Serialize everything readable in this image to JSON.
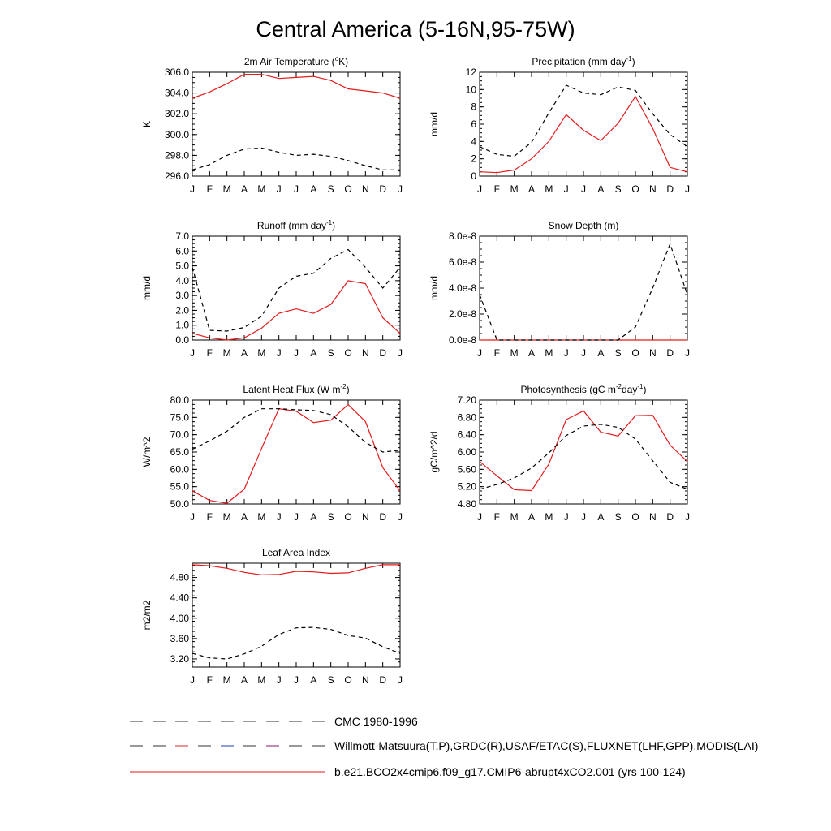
{
  "page_title": "Central America (5-16N,95-75W)",
  "legend": [
    {
      "label": "CMC 1980-1996",
      "style": "dashed",
      "color": "#333333"
    },
    {
      "label": "Willmott-Matsuura(T,P),GRDC(R),USAF/ETAC(S),FLUXNET(LHF,GPP),MODIS(LAI)",
      "style": "dashed-multicolor",
      "color": "#333333"
    },
    {
      "label": "b.e21.BCO2x4cmip6.f09_g17.CMIP6-abrupt4xCO2.001 (yrs 100-124)",
      "style": "solid",
      "color": "#e41a1c"
    }
  ],
  "chart_data": [
    {
      "type": "line",
      "title": "2m Air Temperature (",
      "title_sup": "o",
      "title_tail": "K)",
      "ylabel": "K",
      "categories": [
        "J",
        "F",
        "M",
        "A",
        "M",
        "J",
        "J",
        "A",
        "S",
        "O",
        "N",
        "D",
        "J"
      ],
      "ylim": [
        296.0,
        306.0
      ],
      "yticks": [
        296.0,
        298.0,
        300.0,
        302.0,
        304.0,
        306.0
      ],
      "ytick_labels": [
        "296.0",
        "298.0",
        "300.0",
        "302.0",
        "304.0",
        "306.0"
      ],
      "series": [
        {
          "style": "solid",
          "color": "#e41a1c",
          "values": [
            303.5,
            304.1,
            304.9,
            305.8,
            305.8,
            305.4,
            305.5,
            305.6,
            305.2,
            304.4,
            304.2,
            304.0,
            303.5
          ]
        },
        {
          "style": "dashed",
          "color": "#000000",
          "values": [
            296.6,
            297.1,
            298.0,
            298.6,
            298.7,
            298.3,
            298.0,
            298.1,
            297.9,
            297.5,
            297.0,
            296.6,
            296.6
          ]
        }
      ]
    },
    {
      "type": "line",
      "title": "Precipitation (mm day",
      "title_sup": "-1",
      "title_tail": ")",
      "ylabel": "mm/d",
      "categories": [
        "J",
        "F",
        "M",
        "A",
        "M",
        "J",
        "J",
        "A",
        "S",
        "O",
        "N",
        "D",
        "J"
      ],
      "ylim": [
        0,
        12
      ],
      "yticks": [
        0,
        2,
        4,
        6,
        8,
        10,
        12
      ],
      "ytick_labels": [
        "0",
        "2",
        "4",
        "6",
        "8",
        "10",
        "12"
      ],
      "series": [
        {
          "style": "solid",
          "color": "#e41a1c",
          "values": [
            0.5,
            0.4,
            0.7,
            2.0,
            4.0,
            7.1,
            5.3,
            4.1,
            6.1,
            9.2,
            5.5,
            1.0,
            0.5
          ]
        },
        {
          "style": "dashed",
          "color": "#000000",
          "values": [
            3.4,
            2.5,
            2.3,
            3.9,
            7.3,
            10.5,
            9.6,
            9.4,
            10.3,
            9.9,
            7.2,
            4.8,
            3.4
          ]
        }
      ]
    },
    {
      "type": "line",
      "title": "Runoff (mm day",
      "title_sup": "-1",
      "title_tail": ")",
      "ylabel": "mm/d",
      "categories": [
        "J",
        "F",
        "M",
        "A",
        "M",
        "J",
        "J",
        "A",
        "S",
        "O",
        "N",
        "D",
        "J"
      ],
      "ylim": [
        0.0,
        7.0
      ],
      "yticks": [
        0.0,
        1.0,
        2.0,
        3.0,
        4.0,
        5.0,
        6.0,
        7.0
      ],
      "ytick_labels": [
        "0.0",
        "1.0",
        "2.0",
        "3.0",
        "4.0",
        "5.0",
        "6.0",
        "7.0"
      ],
      "series": [
        {
          "style": "solid",
          "color": "#e41a1c",
          "values": [
            0.45,
            0.15,
            0.0,
            0.15,
            0.8,
            1.8,
            2.1,
            1.8,
            2.4,
            4.0,
            3.8,
            1.5,
            0.45
          ]
        },
        {
          "style": "dashed",
          "color": "#000000",
          "values": [
            4.9,
            0.65,
            0.6,
            0.85,
            1.6,
            3.5,
            4.3,
            4.5,
            5.5,
            6.1,
            4.9,
            3.5,
            4.9
          ]
        }
      ]
    },
    {
      "type": "line",
      "title": "Snow Depth (m)",
      "title_sup": "",
      "title_tail": "",
      "ylabel": "mm/d",
      "categories": [
        "J",
        "F",
        "M",
        "A",
        "M",
        "J",
        "J",
        "A",
        "S",
        "O",
        "N",
        "D",
        "J"
      ],
      "ylim": [
        0.0,
        8e-08
      ],
      "yticks": [
        0.0,
        2e-08,
        4e-08,
        6e-08,
        8e-08
      ],
      "ytick_labels": [
        "0.0e-8",
        "2.0e-8",
        "4.0e-8",
        "6.0e-8",
        "8.0e-8"
      ],
      "series": [
        {
          "style": "solid",
          "color": "#e41a1c",
          "values": [
            0,
            0,
            0,
            0,
            0,
            0,
            0,
            0,
            0,
            0,
            0,
            0,
            0
          ]
        },
        {
          "style": "dashed",
          "color": "#000000",
          "values": [
            3.5e-08,
            0,
            0,
            0,
            0,
            0,
            0,
            0,
            0,
            1e-08,
            4e-08,
            7.4e-08,
            3.5e-08
          ]
        }
      ]
    },
    {
      "type": "line",
      "title": "Latent Heat Flux (W m",
      "title_sup": "-2",
      "title_tail": ")",
      "ylabel": "W/m^2",
      "categories": [
        "J",
        "F",
        "M",
        "A",
        "M",
        "J",
        "J",
        "A",
        "S",
        "O",
        "N",
        "D",
        "J"
      ],
      "ylim": [
        50.0,
        80.0
      ],
      "yticks": [
        50.0,
        55.0,
        60.0,
        65.0,
        70.0,
        75.0,
        80.0
      ],
      "ytick_labels": [
        "50.0",
        "55.0",
        "60.0",
        "65.0",
        "70.0",
        "75.0",
        "80.0"
      ],
      "series": [
        {
          "style": "solid",
          "color": "#e41a1c",
          "values": [
            53.8,
            51.0,
            50.2,
            54.3,
            66.0,
            77.5,
            76.8,
            73.5,
            74.2,
            78.7,
            73.8,
            60.5,
            53.8
          ]
        },
        {
          "style": "dashed",
          "color": "#000000",
          "values": [
            65.8,
            68.2,
            71.0,
            75.0,
            77.5,
            77.5,
            77.2,
            77.0,
            75.8,
            72.3,
            67.8,
            65.0,
            65.5
          ]
        }
      ]
    },
    {
      "type": "line",
      "title": "Photosynthesis (gC m",
      "title_sup": "-2",
      "title_tail": "day",
      "title_sup2": "-1",
      "title_tail2": ")",
      "ylabel": "gC/m^2/d",
      "categories": [
        "J",
        "F",
        "M",
        "A",
        "M",
        "J",
        "J",
        "A",
        "S",
        "O",
        "N",
        "D",
        "J"
      ],
      "ylim": [
        4.8,
        7.2
      ],
      "yticks": [
        4.8,
        5.2,
        5.6,
        6.0,
        6.4,
        6.8,
        7.2
      ],
      "ytick_labels": [
        "4.80",
        "5.20",
        "5.60",
        "6.00",
        "6.40",
        "6.80",
        "7.20"
      ],
      "series": [
        {
          "style": "solid",
          "color": "#e41a1c",
          "values": [
            5.78,
            5.45,
            5.13,
            5.11,
            5.72,
            6.75,
            6.95,
            6.46,
            6.37,
            6.84,
            6.85,
            6.16,
            5.78
          ]
        },
        {
          "style": "dashed",
          "color": "#000000",
          "values": [
            5.14,
            5.25,
            5.4,
            5.63,
            5.98,
            6.38,
            6.6,
            6.64,
            6.57,
            6.3,
            5.8,
            5.3,
            5.14
          ]
        }
      ]
    },
    {
      "type": "line",
      "title": "Leaf Area Index",
      "title_sup": "",
      "title_tail": "",
      "ylabel": "m2/m2",
      "categories": [
        "J",
        "F",
        "M",
        "A",
        "M",
        "J",
        "J",
        "A",
        "S",
        "O",
        "N",
        "D",
        "J"
      ],
      "ylim": [
        3.04,
        5.08
      ],
      "yticks": [
        3.2,
        3.6,
        4.0,
        4.4,
        4.8
      ],
      "ytick_labels": [
        "3.20",
        "3.60",
        "4.00",
        "4.40",
        "4.80"
      ],
      "series": [
        {
          "style": "solid",
          "color": "#e41a1c",
          "values": [
            5.05,
            5.03,
            4.98,
            4.9,
            4.85,
            4.86,
            4.92,
            4.91,
            4.88,
            4.89,
            4.98,
            5.05,
            5.05
          ]
        },
        {
          "style": "dashed",
          "color": "#000000",
          "values": [
            3.31,
            3.22,
            3.2,
            3.3,
            3.45,
            3.68,
            3.81,
            3.82,
            3.78,
            3.66,
            3.61,
            3.44,
            3.31
          ]
        }
      ]
    }
  ]
}
